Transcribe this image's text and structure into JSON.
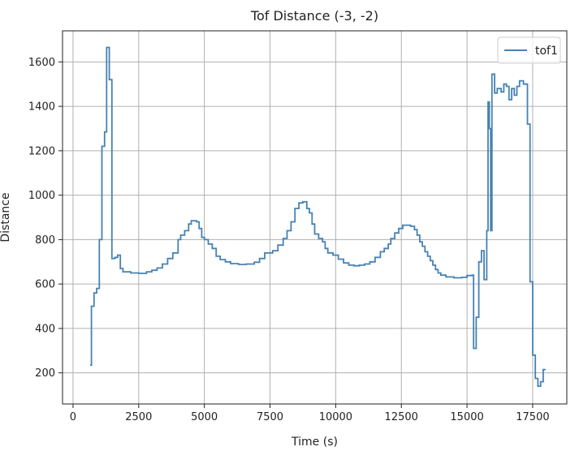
{
  "chart_data": {
    "type": "line",
    "title": "Tof Distance (-3, -2)",
    "xlabel": "Time (s)",
    "ylabel": "Distance",
    "xlim": [
      -400,
      18800
    ],
    "ylim": [
      60,
      1740
    ],
    "xticks": [
      0,
      2500,
      5000,
      7500,
      10000,
      12500,
      15000,
      17500
    ],
    "xtick_labels": [
      "0",
      "2500",
      "5000",
      "7500",
      "10000",
      "12500",
      "15000",
      "17500"
    ],
    "yticks": [
      200,
      400,
      600,
      800,
      1000,
      1200,
      1400,
      1600
    ],
    "ytick_labels": [
      "200",
      "400",
      "600",
      "800",
      "1000",
      "1200",
      "1400",
      "1600"
    ],
    "grid": true,
    "legend_position": "top-right",
    "series": [
      {
        "name": "tof1",
        "color": "#4682b4",
        "step": true,
        "points": [
          [
            650,
            235
          ],
          [
            700,
            500
          ],
          [
            800,
            560
          ],
          [
            900,
            580
          ],
          [
            1000,
            800
          ],
          [
            1100,
            1220
          ],
          [
            1200,
            1285
          ],
          [
            1280,
            1665
          ],
          [
            1380,
            1520
          ],
          [
            1480,
            715
          ],
          [
            1600,
            720
          ],
          [
            1700,
            730
          ],
          [
            1800,
            670
          ],
          [
            1900,
            655
          ],
          [
            2200,
            650
          ],
          [
            2500,
            648
          ],
          [
            2800,
            655
          ],
          [
            3000,
            662
          ],
          [
            3200,
            672
          ],
          [
            3400,
            690
          ],
          [
            3600,
            715
          ],
          [
            3800,
            740
          ],
          [
            4000,
            800
          ],
          [
            4100,
            820
          ],
          [
            4250,
            840
          ],
          [
            4400,
            870
          ],
          [
            4500,
            885
          ],
          [
            4700,
            880
          ],
          [
            4800,
            850
          ],
          [
            4900,
            810
          ],
          [
            5000,
            800
          ],
          [
            5150,
            780
          ],
          [
            5300,
            760
          ],
          [
            5450,
            725
          ],
          [
            5600,
            710
          ],
          [
            5800,
            700
          ],
          [
            6000,
            692
          ],
          [
            6300,
            688
          ],
          [
            6600,
            690
          ],
          [
            6900,
            698
          ],
          [
            7100,
            715
          ],
          [
            7300,
            740
          ],
          [
            7600,
            750
          ],
          [
            7800,
            775
          ],
          [
            8000,
            805
          ],
          [
            8150,
            840
          ],
          [
            8300,
            880
          ],
          [
            8450,
            940
          ],
          [
            8600,
            965
          ],
          [
            8750,
            970
          ],
          [
            8900,
            940
          ],
          [
            9000,
            920
          ],
          [
            9100,
            870
          ],
          [
            9200,
            825
          ],
          [
            9350,
            805
          ],
          [
            9500,
            790
          ],
          [
            9600,
            760
          ],
          [
            9700,
            740
          ],
          [
            9900,
            730
          ],
          [
            10100,
            712
          ],
          [
            10300,
            695
          ],
          [
            10500,
            685
          ],
          [
            10700,
            682
          ],
          [
            10900,
            685
          ],
          [
            11100,
            690
          ],
          [
            11300,
            700
          ],
          [
            11500,
            720
          ],
          [
            11700,
            745
          ],
          [
            11850,
            760
          ],
          [
            12000,
            780
          ],
          [
            12100,
            805
          ],
          [
            12250,
            830
          ],
          [
            12400,
            850
          ],
          [
            12550,
            865
          ],
          [
            12850,
            860
          ],
          [
            13000,
            845
          ],
          [
            13100,
            820
          ],
          [
            13200,
            790
          ],
          [
            13300,
            770
          ],
          [
            13400,
            745
          ],
          [
            13500,
            725
          ],
          [
            13600,
            705
          ],
          [
            13700,
            685
          ],
          [
            13800,
            665
          ],
          [
            13900,
            650
          ],
          [
            14000,
            640
          ],
          [
            14200,
            632
          ],
          [
            14500,
            628
          ],
          [
            14800,
            630
          ],
          [
            15000,
            638
          ],
          [
            15200,
            640
          ],
          [
            15250,
            310
          ],
          [
            15350,
            450
          ],
          [
            15450,
            700
          ],
          [
            15550,
            750
          ],
          [
            15650,
            620
          ],
          [
            15750,
            840
          ],
          [
            15800,
            1420
          ],
          [
            15850,
            1300
          ],
          [
            15900,
            840
          ],
          [
            15950,
            1545
          ],
          [
            16050,
            1460
          ],
          [
            16150,
            1480
          ],
          [
            16300,
            1465
          ],
          [
            16400,
            1500
          ],
          [
            16500,
            1490
          ],
          [
            16600,
            1430
          ],
          [
            16700,
            1480
          ],
          [
            16800,
            1450
          ],
          [
            16900,
            1490
          ],
          [
            17000,
            1515
          ],
          [
            17150,
            1500
          ],
          [
            17300,
            1320
          ],
          [
            17400,
            610
          ],
          [
            17500,
            280
          ],
          [
            17600,
            175
          ],
          [
            17700,
            140
          ],
          [
            17800,
            160
          ],
          [
            17900,
            215
          ],
          [
            18000,
            215
          ]
        ]
      }
    ]
  }
}
